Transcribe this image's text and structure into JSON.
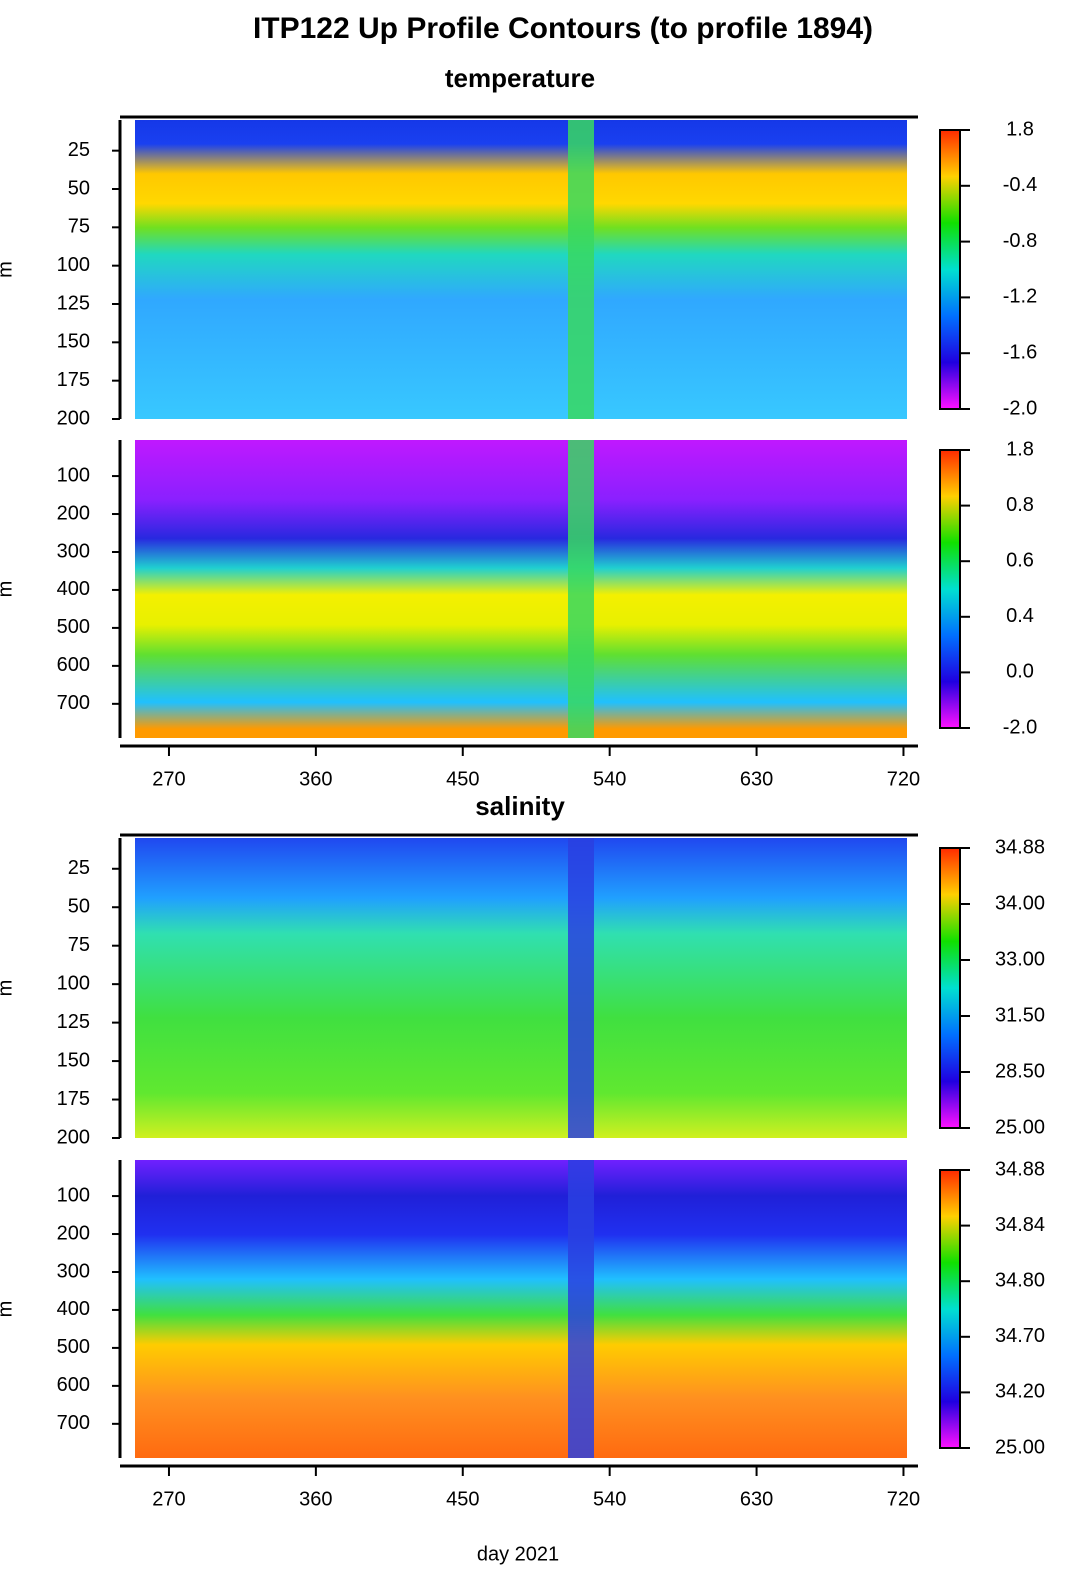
{
  "title": "ITP122 Up Profile Contours (to profile 1894)",
  "colormap": [
    "#ff2a00",
    "#ffd000",
    "#10e000",
    "#00e0d0",
    "#0070ff",
    "#2000e0",
    "#ff10ff"
  ],
  "chart_data": [
    {
      "type": "contour",
      "title": "temperature",
      "ylabel": "m",
      "xlim": [
        240,
        724
      ],
      "ylim": [
        5,
        200
      ],
      "yticks": [
        25,
        50,
        75,
        100,
        125,
        150,
        175,
        200
      ],
      "colorbar_labels": [
        "1.8",
        "-0.4",
        "-0.8",
        "-1.2",
        "-1.6",
        "-2.0"
      ]
    },
    {
      "type": "contour",
      "ylabel": "m",
      "xlim": [
        240,
        724
      ],
      "ylim": [
        5,
        790
      ],
      "yticks": [
        100,
        200,
        300,
        400,
        500,
        600,
        700
      ],
      "xticks": [
        270,
        360,
        450,
        540,
        630,
        720
      ],
      "colorbar_labels": [
        "1.8",
        "0.8",
        "0.6",
        "0.4",
        "0.0",
        "-2.0"
      ]
    },
    {
      "type": "contour",
      "title": "salinity",
      "ylabel": "m",
      "xlim": [
        240,
        724
      ],
      "ylim": [
        5,
        200
      ],
      "yticks": [
        25,
        50,
        75,
        100,
        125,
        150,
        175,
        200
      ],
      "colorbar_labels": [
        "34.88",
        "34.00",
        "33.00",
        "31.50",
        "28.50",
        "25.00"
      ]
    },
    {
      "type": "contour",
      "ylabel": "m",
      "xlabel": "day 2021",
      "xlim": [
        240,
        724
      ],
      "ylim": [
        5,
        790
      ],
      "yticks": [
        100,
        200,
        300,
        400,
        500,
        600,
        700
      ],
      "xticks": [
        270,
        360,
        450,
        540,
        630,
        720
      ],
      "colorbar_labels": [
        "34.88",
        "34.84",
        "34.80",
        "34.70",
        "34.20",
        "25.00"
      ]
    }
  ]
}
